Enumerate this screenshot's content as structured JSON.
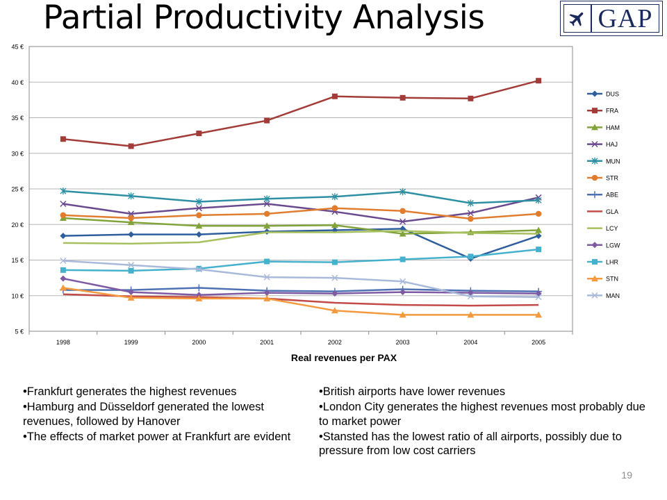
{
  "title": "Partial Productivity Analysis",
  "logo": {
    "text": "GAP",
    "icon": "airplane-icon",
    "color": "#1b2a5c"
  },
  "page_number": "19",
  "bullets_left": [
    "Frankfurt generates the highest revenues",
    "Hamburg and Düsseldorf generated the lowest revenues, followed by Hanover",
    "The effects of market power at Frankfurt are evident"
  ],
  "bullets_right": [
    "British airports have lower revenues",
    "London City generates the highest revenues most probably due to market power",
    "Stansted has the lowest ratio of all airports, possibly due to pressure from low cost carriers"
  ],
  "chart_data": {
    "type": "line",
    "title": "",
    "xlabel": "Real revenues per PAX",
    "ylabel": "",
    "x": [
      "1998",
      "1999",
      "2000",
      "2001",
      "2002",
      "2003",
      "2004",
      "2005"
    ],
    "ylim": [
      5,
      45
    ],
    "yticks": [
      5,
      10,
      15,
      20,
      25,
      30,
      35,
      40,
      45
    ],
    "ytick_labels": [
      "5 €",
      "10 €",
      "15 €",
      "20 €",
      "25 €",
      "30 €",
      "35 €",
      "40 €",
      "45 €"
    ],
    "grid": "horizontal",
    "legend_position": "right",
    "series": [
      {
        "name": "DUS",
        "color": "#2f5e9c",
        "marker": "diamond",
        "values": [
          18.4,
          18.6,
          18.6,
          19.0,
          19.2,
          19.4,
          15.2,
          18.4
        ]
      },
      {
        "name": "FRA",
        "color": "#a13c38",
        "marker": "square",
        "values": [
          32.0,
          31.0,
          32.8,
          34.6,
          38.0,
          37.8,
          37.7,
          40.2
        ]
      },
      {
        "name": "HAM",
        "color": "#82a33a",
        "marker": "triangle",
        "values": [
          20.9,
          20.3,
          19.8,
          19.8,
          19.9,
          18.7,
          18.9,
          19.2
        ]
      },
      {
        "name": "HAJ",
        "color": "#6a4a8e",
        "marker": "x",
        "values": [
          22.9,
          21.5,
          22.3,
          22.9,
          21.8,
          20.4,
          21.6,
          23.8
        ]
      },
      {
        "name": "MUN",
        "color": "#2e8fa3",
        "marker": "star",
        "values": [
          24.7,
          24.0,
          23.2,
          23.6,
          23.9,
          24.6,
          23.0,
          23.4
        ]
      },
      {
        "name": "STR",
        "color": "#e07d2f",
        "marker": "circle",
        "values": [
          21.3,
          20.9,
          21.3,
          21.5,
          22.3,
          21.9,
          20.8,
          21.5
        ]
      },
      {
        "name": "ABE",
        "color": "#4d71b3",
        "marker": "plus",
        "values": [
          10.8,
          10.8,
          11.1,
          10.7,
          10.6,
          10.9,
          10.7,
          10.6
        ]
      },
      {
        "name": "GLA",
        "color": "#c24a48",
        "marker": "none",
        "values": [
          10.2,
          9.9,
          9.8,
          9.6,
          9.0,
          8.7,
          8.6,
          8.7
        ]
      },
      {
        "name": "LCY",
        "color": "#a6c05e",
        "marker": "none",
        "values": [
          17.4,
          17.3,
          17.5,
          18.9,
          18.9,
          19.1,
          18.8,
          18.7
        ]
      },
      {
        "name": "LGW",
        "color": "#7e5aa3",
        "marker": "diamond",
        "values": [
          12.4,
          10.5,
          10.1,
          10.4,
          10.3,
          10.5,
          10.4,
          10.3
        ]
      },
      {
        "name": "LHR",
        "color": "#45b1cc",
        "marker": "square",
        "values": [
          13.6,
          13.5,
          13.8,
          14.8,
          14.7,
          15.1,
          15.5,
          16.5
        ]
      },
      {
        "name": "STN",
        "color": "#f39a3e",
        "marker": "triangle",
        "values": [
          11.1,
          9.7,
          9.6,
          9.6,
          7.9,
          7.3,
          7.3,
          7.3
        ]
      },
      {
        "name": "MAN",
        "color": "#a9b9da",
        "marker": "x",
        "values": [
          14.9,
          14.3,
          13.7,
          12.6,
          12.5,
          12.0,
          9.9,
          9.8
        ]
      }
    ]
  }
}
